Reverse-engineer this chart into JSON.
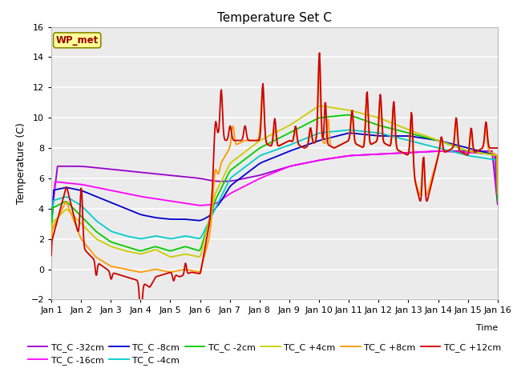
{
  "title": "Temperature Set C",
  "xlabel": "Time",
  "ylabel": "Temperature (C)",
  "ylim": [
    -2,
    16
  ],
  "xlim": [
    0,
    15
  ],
  "xtick_labels": [
    "Jan 1",
    "Jan 2",
    "Jan 3",
    "Jan 4",
    "Jan 5",
    "Jan 6",
    "Jan 7",
    "Jan 8",
    "Jan 9",
    "Jan 10",
    "Jan 11",
    "Jan 12",
    "Jan 13",
    "Jan 14",
    "Jan 15",
    "Jan 16"
  ],
  "ytick_vals": [
    -2,
    0,
    2,
    4,
    6,
    8,
    10,
    12,
    14,
    16
  ],
  "bg_color": "#ebebeb",
  "grid_color": "#ffffff",
  "series_colors": {
    "TC_C -32cm": "#9900cc",
    "TC_C -16cm": "#ff00ff",
    "TC_C -8cm": "#0000cc",
    "TC_C -4cm": "#00cccc",
    "TC_C -2cm": "#00cc00",
    "TC_C +4cm": "#cccc00",
    "TC_C +8cm": "#ff9900",
    "TC_C +12cm": "#cc0000"
  },
  "wp_met_box_color": "#ffff99",
  "wp_met_text_color": "#990000",
  "legend_order": [
    "TC_C -32cm",
    "TC_C -16cm",
    "TC_C -8cm",
    "TC_C -4cm",
    "TC_C -2cm",
    "TC_C +4cm",
    "TC_C +8cm",
    "TC_C +12cm"
  ]
}
